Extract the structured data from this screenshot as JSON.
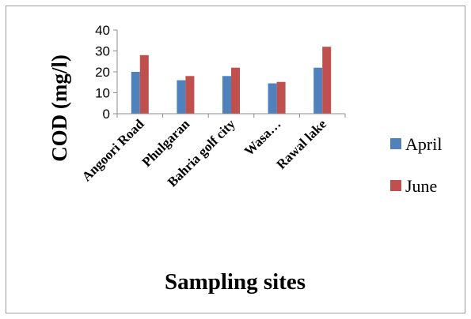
{
  "chart_data": {
    "type": "bar",
    "categories": [
      "Angoori Road",
      "Phulgaran",
      "Bahria golf city",
      "Wasa…",
      "Rawal lake"
    ],
    "series": [
      {
        "name": "April",
        "color": "#4F81BD",
        "values": [
          20,
          16,
          18,
          14.5,
          22
        ]
      },
      {
        "name": "June",
        "color": "#C0504D",
        "values": [
          28,
          18,
          22,
          15.2,
          32
        ]
      }
    ],
    "xlabel": "Sampling sites",
    "ylabel": "COD (mg/l)",
    "ylim": [
      0,
      40
    ],
    "yticks": [
      0,
      10,
      20,
      30,
      40
    ],
    "grid": false,
    "legend_position": "right"
  }
}
